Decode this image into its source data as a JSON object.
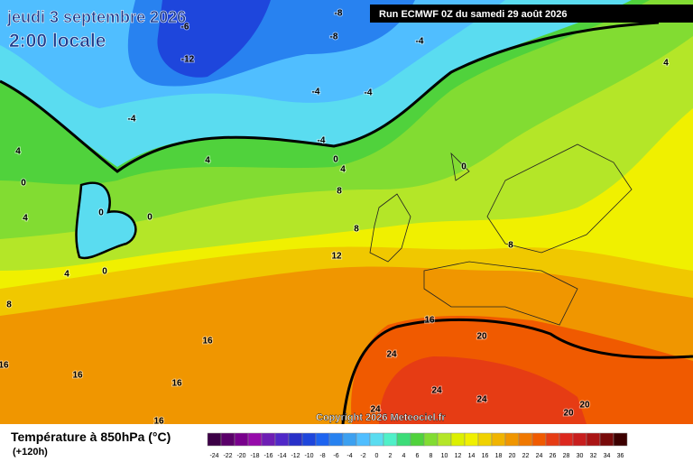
{
  "header": {
    "date": "jeudi 3 septembre 2026",
    "time": "2:00 locale",
    "run": "Run ECMWF 0Z du samedi 29 août 2026",
    "copyright": "Copyright 2026 Meteociel.fr"
  },
  "legend": {
    "title": "Température à 850hPa (°C)",
    "lead": "(+120h)",
    "labels": [
      -24,
      -22,
      -20,
      -18,
      -16,
      -14,
      -12,
      -10,
      -8,
      -6,
      -4,
      -2,
      0,
      2,
      4,
      6,
      8,
      10,
      12,
      14,
      16,
      18,
      20,
      22,
      24,
      26,
      28,
      30,
      32,
      34,
      36
    ],
    "colors": [
      "#3c0046",
      "#5a0069",
      "#78008c",
      "#960aaa",
      "#6e1eb4",
      "#5028c8",
      "#2830c8",
      "#1e46dc",
      "#1e64f0",
      "#2882f0",
      "#3ca0f0",
      "#50beff",
      "#5adcf0",
      "#50f0c8",
      "#3cdc78",
      "#50d23c",
      "#82dc32",
      "#b4e628",
      "#dcf000",
      "#f0f000",
      "#f0d200",
      "#f0b400",
      "#f09600",
      "#f07800",
      "#f05a00",
      "#e63c14",
      "#dc281e",
      "#c81e1e",
      "#aa1414",
      "#780a0a",
      "#3c0000"
    ]
  },
  "contour_labels": [
    -8,
    -8,
    -6,
    -4,
    -12,
    -4,
    -4,
    -4,
    -4,
    4,
    4,
    4,
    0,
    4,
    0,
    0,
    8,
    0,
    0,
    4,
    8,
    8,
    4,
    0,
    12,
    8,
    16,
    16,
    20,
    24,
    16,
    16,
    16,
    24,
    24,
    24,
    20,
    20,
    16
  ]
}
